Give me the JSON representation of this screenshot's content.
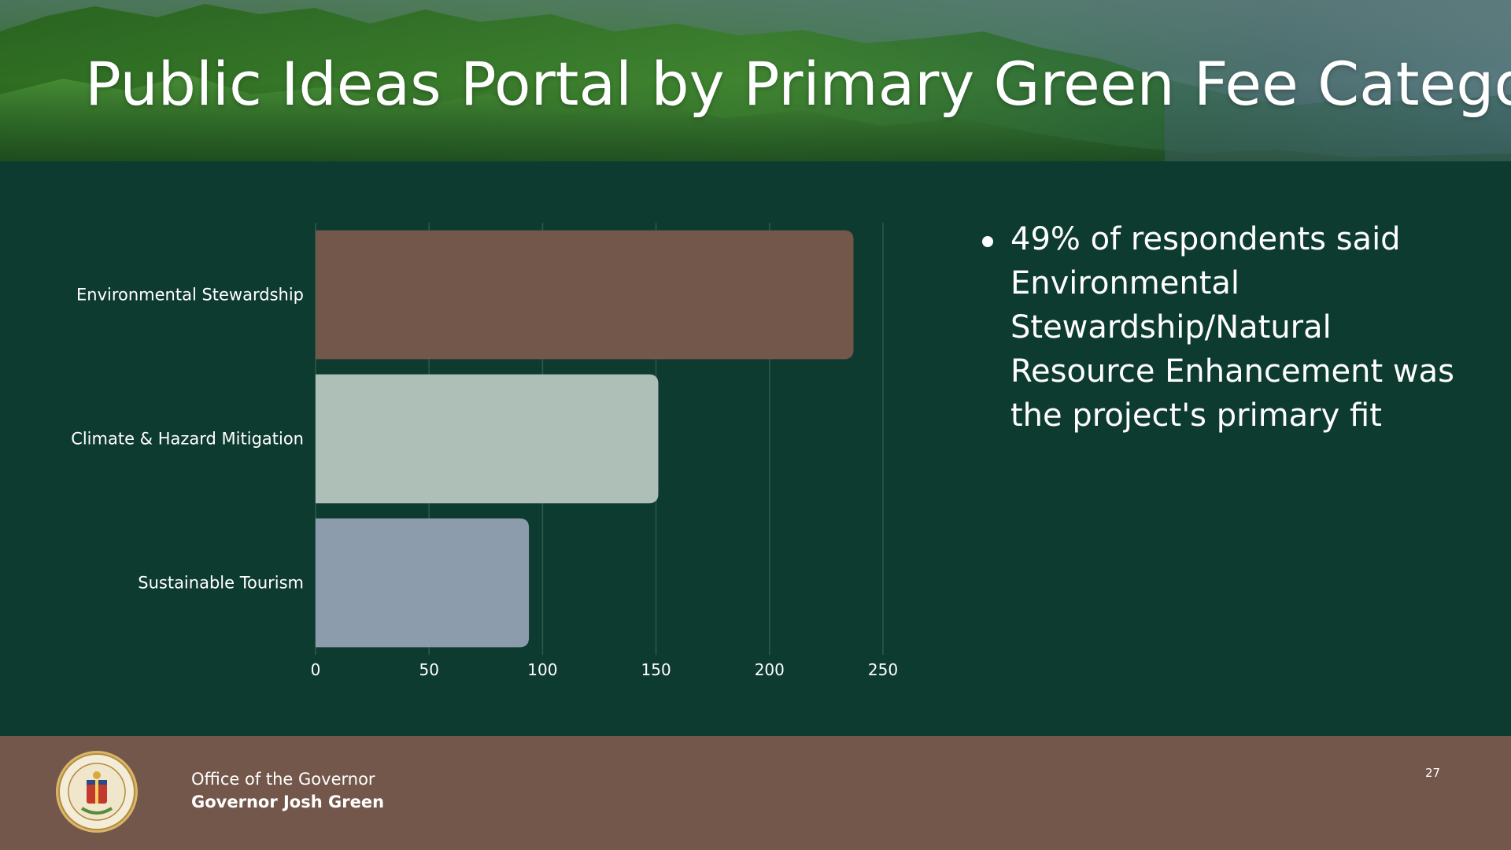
{
  "header": {
    "title": "Public Ideas Portal by Primary Green Fee Category"
  },
  "chart_data": {
    "type": "bar",
    "orientation": "horizontal",
    "categories": [
      "Environmental Stewardship",
      "Climate & Hazard Mitigation",
      "Sustainable Tourism"
    ],
    "values": [
      237,
      151,
      94
    ],
    "colors": [
      "#74574b",
      "#aebfb8",
      "#8d9cac"
    ],
    "xlim": [
      0,
      250
    ],
    "xticks": [
      0,
      50,
      100,
      150,
      200,
      250
    ],
    "grid": true
  },
  "summary": {
    "bullets": [
      "49% of respondents said Environmental Stewardship/Natural Resource Enhancement was the project's primary fit"
    ]
  },
  "footer": {
    "office": "Office of the Governor",
    "governor": "Governor Josh Green",
    "page_number": "27",
    "seal_icon": "state-seal-icon"
  },
  "colors": {
    "background": "#0e3b30",
    "footer": "#74574b",
    "text": "#ffffff"
  }
}
